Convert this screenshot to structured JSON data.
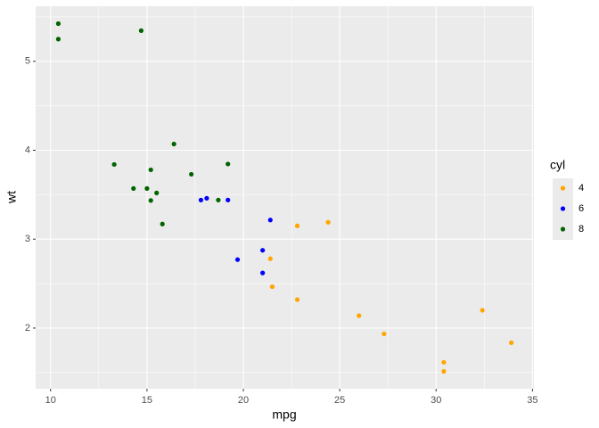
{
  "chart_data": {
    "type": "scatter",
    "x_label": "mpg",
    "y_label": "wt",
    "legend_title": "cyl",
    "legend": "right",
    "grid": true,
    "xlim": [
      9.225,
      35.075
    ],
    "ylim": [
      1.31745,
      5.61955
    ],
    "xticks": [
      10,
      15,
      20,
      25,
      30,
      35
    ],
    "yticks": [
      2,
      3,
      4,
      5
    ],
    "series": [
      {
        "name": "4",
        "color": "#FFA500",
        "x": [
          22.8,
          24.4,
          22.8,
          32.4,
          30.4,
          33.9,
          21.5,
          27.3,
          26.0,
          30.4,
          21.4
        ],
        "values": [
          2.32,
          3.19,
          3.15,
          2.2,
          1.615,
          1.835,
          2.465,
          1.935,
          2.14,
          1.513,
          2.78
        ]
      },
      {
        "name": "6",
        "color": "#0000FF",
        "x": [
          21.0,
          21.0,
          21.4,
          18.1,
          19.2,
          17.8,
          19.7
        ],
        "values": [
          2.62,
          2.875,
          3.215,
          3.46,
          3.44,
          3.44,
          2.77
        ]
      },
      {
        "name": "8",
        "color": "#006400",
        "x": [
          18.7,
          14.3,
          16.4,
          17.3,
          15.2,
          10.4,
          10.4,
          14.7,
          15.5,
          15.2,
          13.3,
          19.2,
          15.8,
          15.0
        ],
        "values": [
          3.44,
          3.57,
          4.07,
          3.73,
          3.78,
          5.25,
          5.424,
          5.345,
          3.52,
          3.435,
          3.84,
          3.845,
          3.17,
          3.57
        ]
      }
    ]
  }
}
